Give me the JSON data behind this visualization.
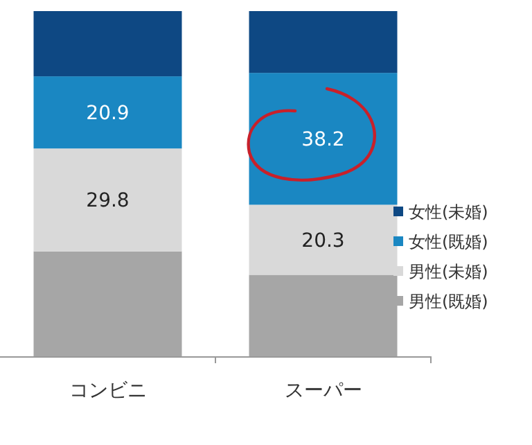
{
  "chart_data": {
    "type": "bar",
    "stacked": true,
    "categories": [
      "コンビニ",
      "スーパー"
    ],
    "series": [
      {
        "name": "男性(既婚)",
        "color": "#a6a6a6",
        "values": [
          30.4,
          23.6
        ]
      },
      {
        "name": "男性(未婚)",
        "color": "#d9d9d9",
        "values": [
          29.8,
          20.3
        ],
        "value_labels": [
          "29.8",
          "20.3"
        ]
      },
      {
        "name": "女性(既婚)",
        "color": "#1a87c2",
        "values": [
          20.9,
          38.2
        ],
        "value_labels": [
          "20.9",
          "38.2"
        ]
      },
      {
        "name": "女性(未婚)",
        "color": "#0e4883",
        "values": [
          18.9,
          17.9
        ]
      }
    ],
    "legend": "right"
  }
}
